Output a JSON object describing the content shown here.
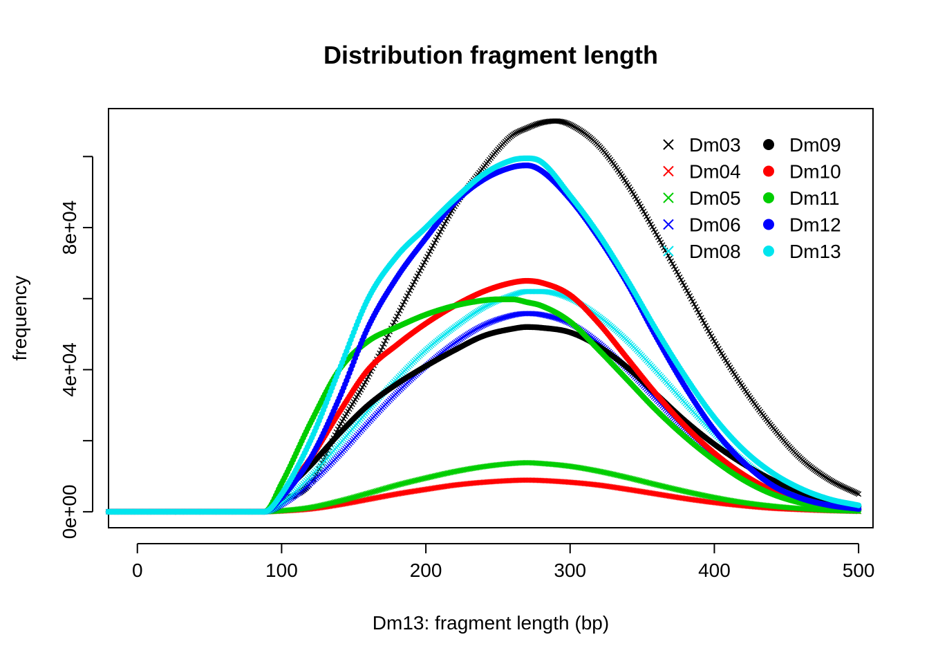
{
  "chart_data": {
    "type": "scatter",
    "title": "Distribution fragment length",
    "xlabel": "Dm13: fragment length (bp)",
    "ylabel": "frequency",
    "xlim": [
      -20,
      510
    ],
    "ylim": [
      -4500,
      113500
    ],
    "x_ticks": [
      0,
      100,
      200,
      300,
      400,
      500
    ],
    "x_tick_labels": [
      "0",
      "100",
      "200",
      "300",
      "400",
      "500"
    ],
    "y_ticks": [
      0,
      20000,
      40000,
      60000,
      80000,
      100000
    ],
    "y_tick_labels": [
      "0e+00",
      "",
      "4e+04",
      "",
      "8e+04",
      ""
    ],
    "grid": false,
    "legend_position": "top-right",
    "series": [
      {
        "name": "Dm03",
        "marker": "x",
        "color": "#000000",
        "x": [
          -20,
          88,
          100,
          120,
          140,
          160,
          180,
          200,
          220,
          240,
          250,
          260,
          270,
          280,
          290,
          300,
          320,
          340,
          360,
          380,
          400,
          420,
          440,
          460,
          480,
          500
        ],
        "y": [
          0,
          0,
          3000,
          8000,
          24000,
          38000,
          55000,
          71000,
          86000,
          97000,
          102000,
          106000,
          108000,
          109500,
          110000,
          109000,
          103000,
          92000,
          78000,
          63000,
          48000,
          35000,
          24000,
          15000,
          9000,
          5000
        ]
      },
      {
        "name": "Dm04",
        "marker": "x",
        "color": "#ff0000",
        "x": [
          -20,
          88,
          100,
          120,
          140,
          160,
          180,
          200,
          220,
          240,
          260,
          270,
          280,
          300,
          320,
          340,
          360,
          380,
          400,
          420,
          440,
          460,
          480,
          500
        ],
        "y": [
          0,
          0,
          200,
          800,
          2000,
          3500,
          5000,
          6300,
          7500,
          8300,
          8800,
          8900,
          8800,
          8300,
          7500,
          6300,
          5000,
          3700,
          2600,
          1700,
          1000,
          600,
          300,
          100
        ]
      },
      {
        "name": "Dm05",
        "marker": "x",
        "color": "#00cd00",
        "x": [
          -20,
          88,
          100,
          120,
          140,
          160,
          180,
          200,
          220,
          240,
          260,
          270,
          280,
          300,
          320,
          340,
          360,
          380,
          400,
          420,
          440,
          460,
          480,
          500
        ],
        "y": [
          0,
          0,
          300,
          1200,
          3000,
          5200,
          7500,
          9500,
          11300,
          12700,
          13600,
          13800,
          13600,
          12800,
          11400,
          9600,
          7600,
          5700,
          4000,
          2600,
          1600,
          900,
          400,
          150
        ]
      },
      {
        "name": "Dm06",
        "marker": "x",
        "color": "#0000ff",
        "x": [
          -20,
          88,
          100,
          120,
          140,
          160,
          180,
          200,
          220,
          240,
          260,
          270,
          280,
          300,
          320,
          340,
          360,
          380,
          400,
          420,
          440,
          460,
          480,
          500
        ],
        "y": [
          0,
          0,
          2000,
          8000,
          16000,
          25000,
          33500,
          41000,
          47500,
          52500,
          55300,
          55800,
          55500,
          53000,
          47500,
          40000,
          31500,
          23000,
          15500,
          9500,
          5500,
          3000,
          1500,
          700
        ]
      },
      {
        "name": "Dm08",
        "marker": "x",
        "color": "#00e5ee",
        "x": [
          -20,
          88,
          100,
          120,
          140,
          160,
          180,
          200,
          220,
          240,
          260,
          270,
          280,
          300,
          320,
          340,
          360,
          380,
          400,
          420,
          440,
          460,
          480,
          500
        ],
        "y": [
          0,
          0,
          2500,
          10000,
          19000,
          28500,
          37500,
          45500,
          52000,
          57500,
          61000,
          62000,
          62000,
          60000,
          55000,
          48000,
          39500,
          30500,
          22000,
          14500,
          8500,
          4500,
          2200,
          1000
        ]
      },
      {
        "name": "Dm09",
        "marker": "dot",
        "color": "#000000",
        "x": [
          -20,
          88,
          100,
          120,
          140,
          160,
          180,
          200,
          220,
          240,
          260,
          270,
          280,
          300,
          320,
          340,
          360,
          380,
          400,
          420,
          440,
          460,
          480,
          500
        ],
        "y": [
          0,
          0,
          5000,
          13000,
          22000,
          30000,
          36000,
          41000,
          45500,
          49500,
          51500,
          52000,
          51800,
          50500,
          46500,
          40500,
          33000,
          25500,
          19000,
          13500,
          9000,
          5500,
          3000,
          1500
        ]
      },
      {
        "name": "Dm10",
        "marker": "dot",
        "color": "#ff0000",
        "x": [
          -20,
          88,
          100,
          120,
          140,
          160,
          180,
          200,
          220,
          240,
          260,
          270,
          280,
          300,
          320,
          340,
          360,
          380,
          400,
          420,
          440,
          460,
          480,
          500
        ],
        "y": [
          0,
          0,
          5000,
          15000,
          28000,
          40000,
          47000,
          53000,
          58000,
          62000,
          64500,
          65000,
          64500,
          61000,
          53000,
          43000,
          33000,
          24000,
          16500,
          10500,
          6000,
          3200,
          1600,
          700
        ]
      },
      {
        "name": "Dm11",
        "marker": "dot",
        "color": "#00cd00",
        "x": [
          -20,
          88,
          100,
          120,
          140,
          160,
          180,
          200,
          220,
          240,
          250,
          260,
          270,
          280,
          300,
          320,
          340,
          360,
          380,
          400,
          420,
          440,
          460,
          480,
          500
        ],
        "y": [
          0,
          0,
          8000,
          25000,
          40000,
          48000,
          52000,
          55500,
          58000,
          59500,
          59800,
          59800,
          59000,
          58000,
          53500,
          45500,
          37000,
          28500,
          21000,
          14500,
          9000,
          5000,
          2500,
          1000,
          400
        ]
      },
      {
        "name": "Dm12",
        "marker": "dot",
        "color": "#0000ff",
        "x": [
          -20,
          88,
          100,
          120,
          140,
          160,
          180,
          200,
          220,
          240,
          260,
          270,
          280,
          300,
          320,
          340,
          360,
          380,
          400,
          420,
          440,
          460,
          480,
          500
        ],
        "y": [
          0,
          0,
          4000,
          15000,
          32000,
          52000,
          66000,
          77000,
          87000,
          93500,
          97000,
          97500,
          96000,
          88000,
          77000,
          64000,
          49000,
          35000,
          23000,
          14000,
          7500,
          3800,
          1800,
          800
        ]
      },
      {
        "name": "Dm13",
        "marker": "dot",
        "color": "#00e5ee",
        "x": [
          -20,
          88,
          100,
          120,
          140,
          160,
          180,
          200,
          220,
          240,
          260,
          270,
          280,
          300,
          320,
          340,
          360,
          380,
          400,
          420,
          440,
          460,
          480,
          500
        ],
        "y": [
          0,
          0,
          5000,
          20000,
          40000,
          60000,
          72000,
          80000,
          88000,
          95000,
          99000,
          99500,
          98500,
          89000,
          78000,
          65000,
          51000,
          38000,
          26500,
          17500,
          11000,
          6500,
          3500,
          1800
        ]
      }
    ]
  }
}
